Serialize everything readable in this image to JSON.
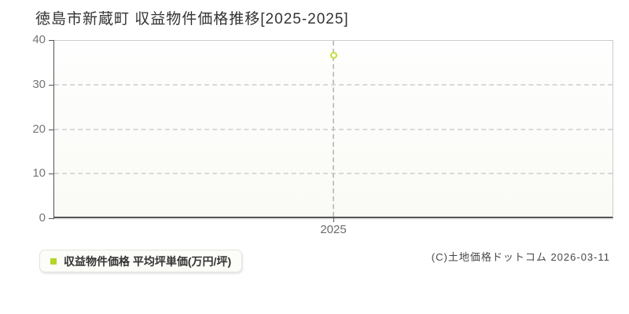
{
  "page": {
    "title": "徳島市新蔵町 収益物件価格推移[2025-2025]",
    "copyright": "(C)土地価格ドットコム 2026-03-11"
  },
  "legend": {
    "label": "収益物件価格 平均坪単価(万円/坪)",
    "marker_color": "#b3d629"
  },
  "chart_data": {
    "type": "scatter",
    "title": "徳島市新蔵町 収益物件価格推移[2025-2025]",
    "categories": [
      "2025"
    ],
    "series": [
      {
        "name": "収益物件価格 平均坪単価(万円/坪)",
        "values": [
          36.6
        ],
        "marker": "open-circle",
        "color": "#c8dc3a"
      }
    ],
    "xlabel": "",
    "ylabel": "",
    "ylim": [
      0,
      40
    ],
    "yticks": [
      0,
      10,
      20,
      30,
      40
    ],
    "grid": true,
    "gridline_style": "dashed",
    "legend_position": "bottom-left"
  }
}
